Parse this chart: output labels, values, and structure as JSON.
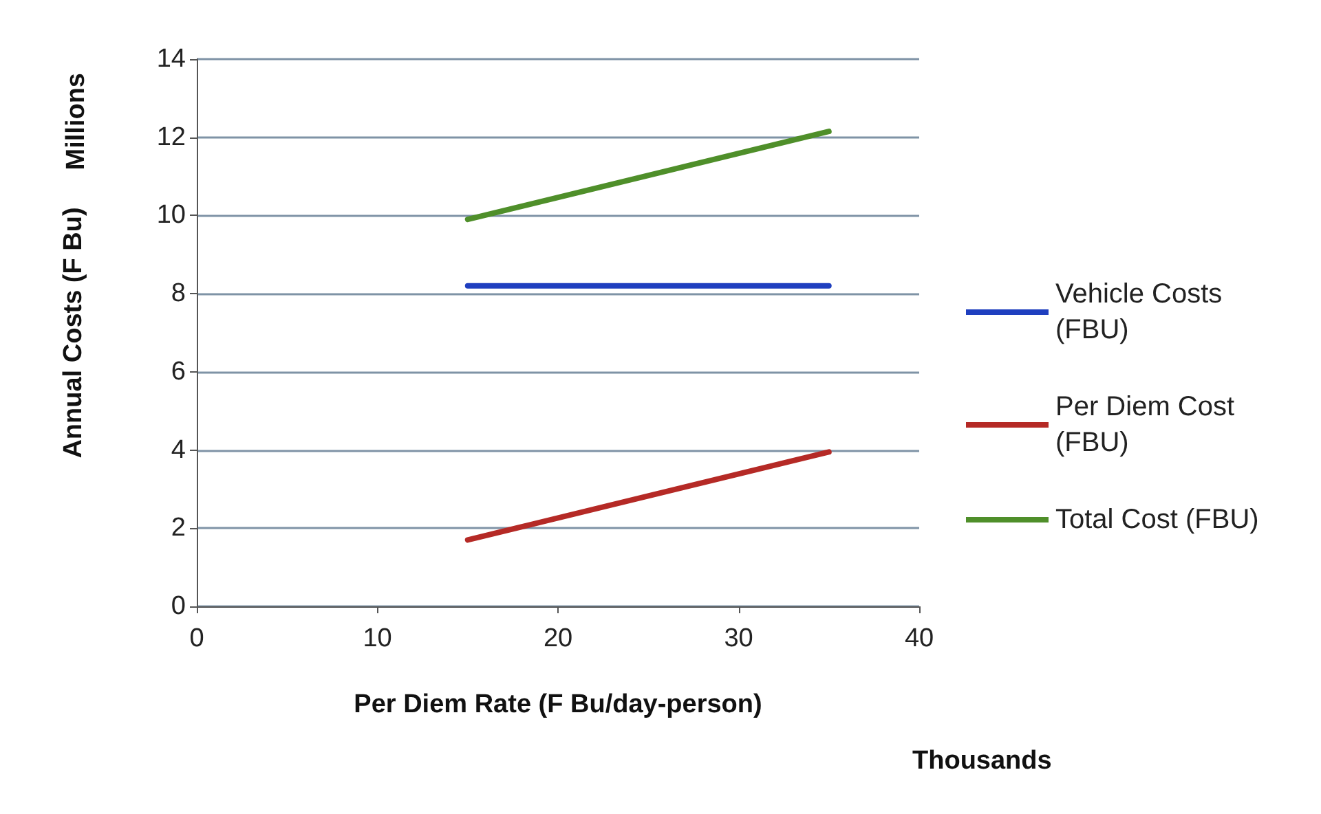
{
  "chart_data": {
    "type": "line",
    "xlabel": "Per Diem Rate (F Bu/day-person)",
    "ylabel": "Annual Costs (F Bu)",
    "annotations": [
      "Millions",
      "Thousands"
    ],
    "x": [
      15,
      35
    ],
    "series": [
      {
        "name": "Vehicle Costs (FBU)",
        "color": "#1f3fbf",
        "values": [
          8.2,
          8.2
        ]
      },
      {
        "name": "Per Diem Cost (FBU)",
        "color": "#b52a26",
        "values": [
          1.7,
          3.95
        ]
      },
      {
        "name": "Total Cost (FBU)",
        "color": "#4f8f2a",
        "values": [
          9.9,
          12.15
        ]
      }
    ],
    "xlim": [
      0,
      40
    ],
    "xticks": [
      0,
      10,
      20,
      30,
      40
    ],
    "ylim": [
      0,
      14
    ],
    "yticks": [
      0,
      2,
      4,
      6,
      8,
      10,
      12,
      14
    ],
    "grid": "y",
    "legend": "right",
    "marker": "none",
    "line_style": "solid"
  }
}
